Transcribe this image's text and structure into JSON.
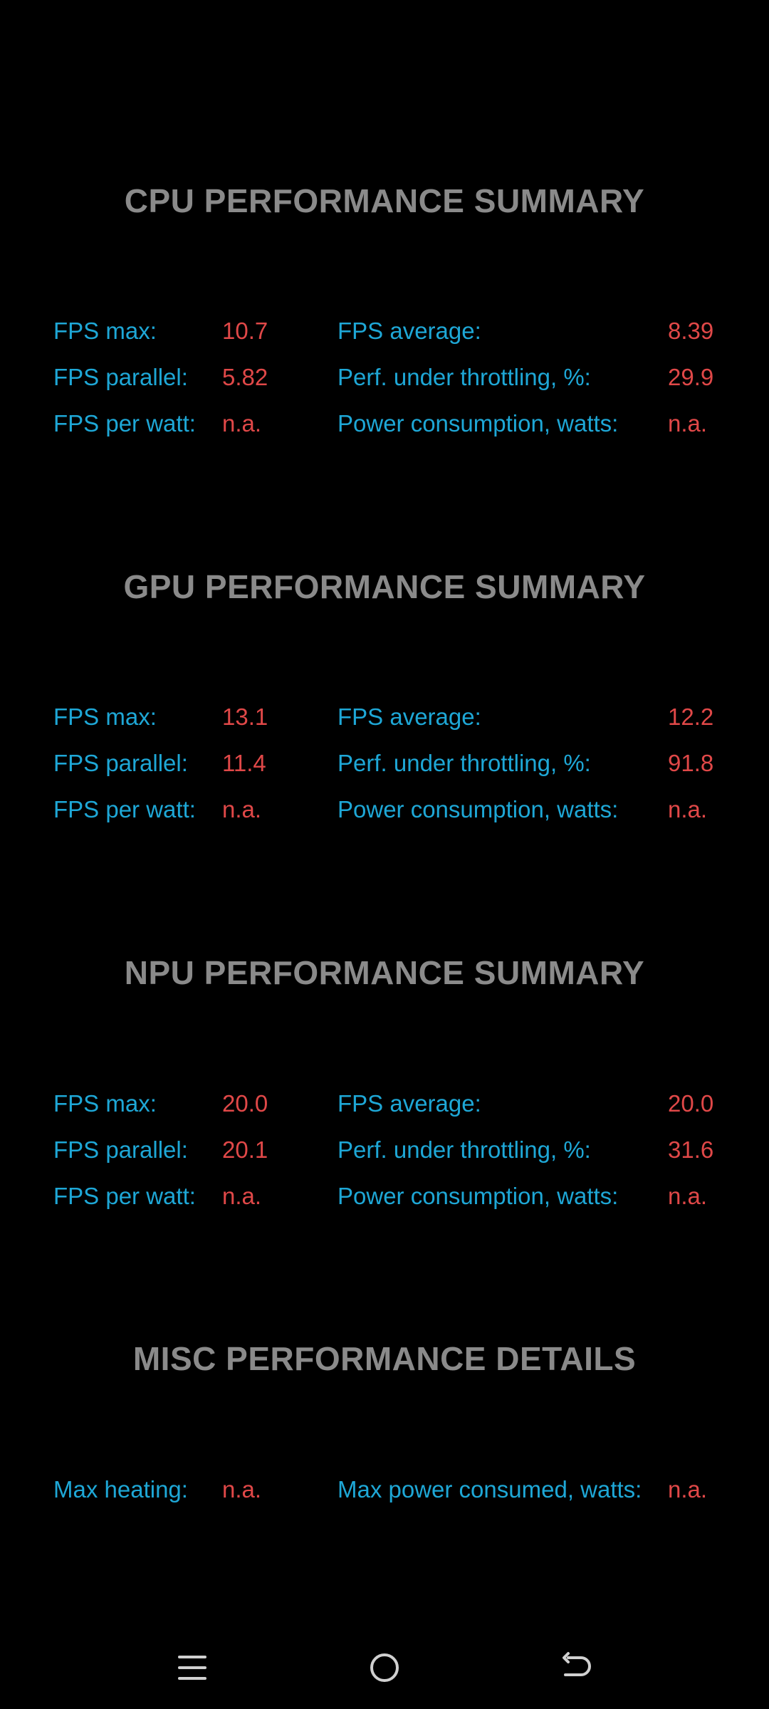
{
  "sections": [
    {
      "title": "CPU PERFORMANCE SUMMARY",
      "rows": [
        {
          "label1": "FPS max:",
          "value1": "10.7",
          "label2": "FPS average:",
          "value2": "8.39"
        },
        {
          "label1": "FPS parallel:",
          "value1": "5.82",
          "label2": "Perf. under throttling, %:",
          "value2": "29.9"
        },
        {
          "label1": "FPS per watt:",
          "value1": "n.a.",
          "label2": "Power consumption, watts:",
          "value2": "n.a."
        }
      ]
    },
    {
      "title": "GPU PERFORMANCE SUMMARY",
      "rows": [
        {
          "label1": "FPS max:",
          "value1": "13.1",
          "label2": "FPS average:",
          "value2": "12.2"
        },
        {
          "label1": "FPS parallel:",
          "value1": "11.4",
          "label2": "Perf. under throttling, %:",
          "value2": "91.8"
        },
        {
          "label1": "FPS per watt:",
          "value1": "n.a.",
          "label2": "Power consumption, watts:",
          "value2": "n.a."
        }
      ]
    },
    {
      "title": "NPU PERFORMANCE SUMMARY",
      "rows": [
        {
          "label1": "FPS max:",
          "value1": "20.0",
          "label2": "FPS average:",
          "value2": "20.0"
        },
        {
          "label1": "FPS parallel:",
          "value1": "20.1",
          "label2": "Perf. under throttling, %:",
          "value2": "31.6"
        },
        {
          "label1": "FPS per watt:",
          "value1": "n.a.",
          "label2": "Power consumption, watts:",
          "value2": "n.a."
        }
      ]
    },
    {
      "title": "MISC PERFORMANCE DETAILS",
      "rows": [
        {
          "label1": "Max heating:",
          "value1": "n.a.",
          "label2": "Max power consumed, watts:",
          "value2": "n.a."
        }
      ]
    }
  ],
  "navbar": {
    "icons": [
      "menu-icon",
      "home-icon",
      "back-icon"
    ]
  },
  "colors": {
    "background": "#000000",
    "title": "#8a8a8a",
    "label": "#1ea7d6",
    "value": "#e04848",
    "nav_icon": "#d0d0d0"
  }
}
